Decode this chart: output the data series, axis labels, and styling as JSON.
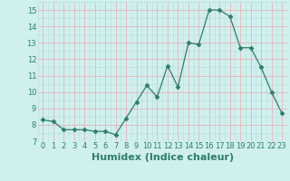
{
  "x": [
    0,
    1,
    2,
    3,
    4,
    5,
    6,
    7,
    8,
    9,
    10,
    11,
    12,
    13,
    14,
    15,
    16,
    17,
    18,
    19,
    20,
    21,
    22,
    23
  ],
  "y": [
    8.3,
    8.2,
    7.7,
    7.7,
    7.7,
    7.6,
    7.6,
    7.4,
    8.4,
    9.4,
    10.4,
    9.7,
    11.6,
    10.3,
    13.0,
    12.9,
    15.0,
    15.0,
    14.6,
    12.7,
    12.7,
    11.5,
    10.0,
    8.7
  ],
  "xlabel": "Humidex (Indice chaleur)",
  "ylim": [
    7,
    15.5
  ],
  "xlim": [
    -0.5,
    23.5
  ],
  "yticks": [
    7,
    8,
    9,
    10,
    11,
    12,
    13,
    14,
    15
  ],
  "xticks": [
    0,
    1,
    2,
    3,
    4,
    5,
    6,
    7,
    8,
    9,
    10,
    11,
    12,
    13,
    14,
    15,
    16,
    17,
    18,
    19,
    20,
    21,
    22,
    23
  ],
  "line_color": "#2e7d6e",
  "marker": "D",
  "marker_size": 2.5,
  "bg_color": "#cff0ee",
  "major_grid_color": "#e8b4b8",
  "minor_grid_color": "#b8dedd",
  "tick_fontsize": 6,
  "xlabel_fontsize": 8
}
